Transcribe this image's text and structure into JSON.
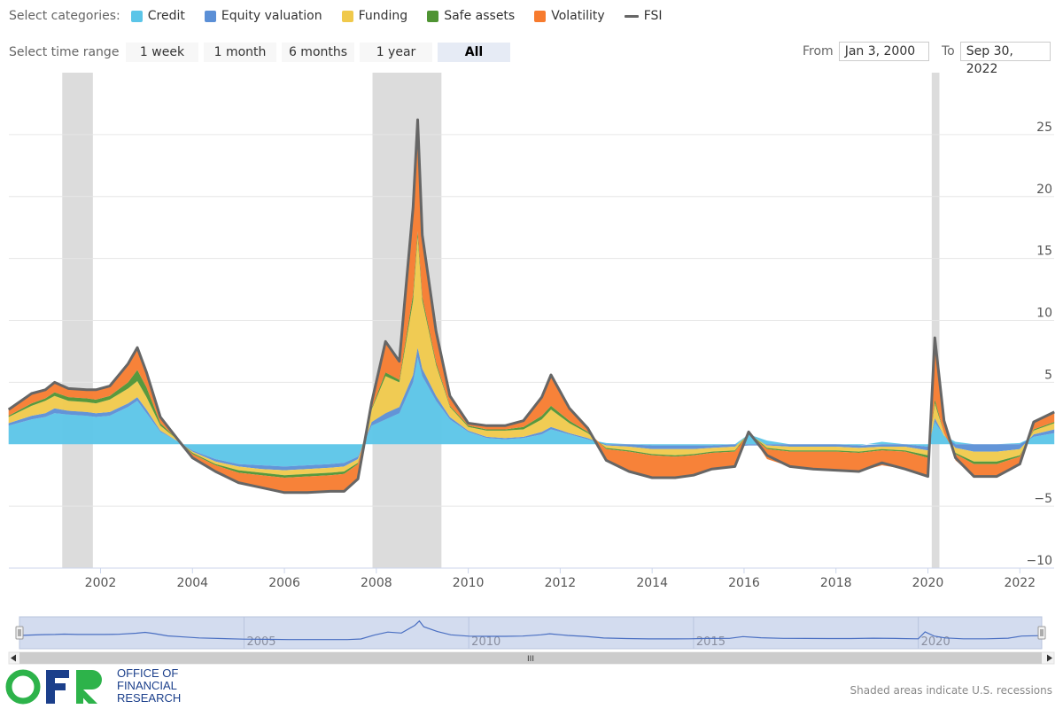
{
  "legend": {
    "title": "Select categories:",
    "items": [
      {
        "label": "Credit",
        "color": "#5bc5e8",
        "type": "area"
      },
      {
        "label": "Equity valuation",
        "color": "#5b8fd6",
        "type": "area"
      },
      {
        "label": "Funding",
        "color": "#f0c94b",
        "type": "area"
      },
      {
        "label": "Safe assets",
        "color": "#4f9433",
        "type": "area"
      },
      {
        "label": "Volatility",
        "color": "#f77b2e",
        "type": "area"
      },
      {
        "label": "FSI",
        "color": "#666666",
        "type": "line"
      }
    ]
  },
  "range_selector": {
    "title": "Select time range",
    "buttons": [
      "1 week",
      "1 month",
      "6 months",
      "1 year",
      "All"
    ],
    "active": "All"
  },
  "date_inputs": {
    "from_label": "From",
    "from_value": "Jan 3, 2000",
    "to_label": "To",
    "to_value": "Sep 30, 2022"
  },
  "navigator": {
    "labels": [
      "2005",
      "2010",
      "2015",
      "2020"
    ],
    "grip": "III"
  },
  "branding": {
    "logo_letters": "OFR",
    "line1": "OFFICE OF",
    "line2": "FINANCIAL",
    "line3": "RESEARCH"
  },
  "footnote": "Shaded areas indicate U.S. recessions",
  "chart_data": {
    "type": "area",
    "stacked": true,
    "x_axis": {
      "type": "date",
      "range": [
        "2000-01-03",
        "2022-09-30"
      ],
      "tick_labels": [
        "2002",
        "2004",
        "2006",
        "2008",
        "2010",
        "2012",
        "2014",
        "2016",
        "2018",
        "2020",
        "2022"
      ]
    },
    "y_axis": {
      "range": [
        -10,
        30
      ],
      "tick_labels": [
        "−10",
        "−5",
        "5",
        "10",
        "15",
        "20",
        "25"
      ],
      "position": "right"
    },
    "grid": true,
    "recessions": [
      [
        "2001-03",
        "2001-11"
      ],
      [
        "2007-12",
        "2009-06"
      ],
      [
        "2020-02",
        "2020-04"
      ]
    ],
    "x": [
      2000.0,
      2000.5,
      2000.8,
      2001.0,
      2001.3,
      2001.7,
      2001.9,
      2002.2,
      2002.6,
      2002.8,
      2003.0,
      2003.3,
      2003.7,
      2004.0,
      2004.5,
      2005.0,
      2005.5,
      2006.0,
      2006.5,
      2007.0,
      2007.3,
      2007.6,
      2007.9,
      2008.2,
      2008.5,
      2008.8,
      2008.9,
      2009.0,
      2009.3,
      2009.6,
      2010.0,
      2010.4,
      2010.8,
      2011.2,
      2011.6,
      2011.8,
      2012.2,
      2012.6,
      2013.0,
      2013.5,
      2014.0,
      2014.5,
      2014.9,
      2015.3,
      2015.8,
      2016.1,
      2016.5,
      2017.0,
      2017.5,
      2018.0,
      2018.5,
      2019.0,
      2019.5,
      2020.0,
      2020.15,
      2020.35,
      2020.6,
      2021.0,
      2021.5,
      2022.0,
      2022.3,
      2022.75
    ],
    "series": [
      {
        "name": "Credit",
        "values": [
          1.5,
          2.0,
          2.2,
          2.5,
          2.4,
          2.3,
          2.2,
          2.3,
          3.0,
          3.5,
          2.5,
          1.0,
          0.2,
          -0.5,
          -1.2,
          -1.6,
          -1.7,
          -1.8,
          -1.7,
          -1.6,
          -1.5,
          -1.0,
          1.5,
          2.0,
          2.5,
          5.0,
          7.0,
          5.5,
          3.5,
          2.0,
          1.0,
          0.5,
          0.4,
          0.5,
          0.8,
          1.2,
          0.8,
          0.4,
          0.1,
          0.0,
          -0.1,
          -0.1,
          -0.1,
          -0.1,
          0.0,
          0.8,
          0.3,
          0.0,
          0.0,
          0.0,
          -0.1,
          0.2,
          0.0,
          -0.2,
          1.8,
          0.7,
          0.2,
          0.0,
          0.0,
          0.1,
          0.6,
          0.9
        ]
      },
      {
        "name": "Equity valuation",
        "values": [
          0.2,
          0.3,
          0.3,
          0.4,
          0.3,
          0.3,
          0.3,
          0.3,
          0.3,
          0.3,
          0.3,
          0.1,
          0.0,
          -0.1,
          -0.2,
          -0.2,
          -0.3,
          -0.3,
          -0.3,
          -0.3,
          -0.3,
          -0.2,
          0.3,
          0.5,
          0.5,
          0.6,
          0.8,
          0.6,
          0.4,
          0.2,
          0.1,
          0.1,
          0.1,
          0.1,
          0.2,
          0.2,
          0.1,
          0.1,
          -0.1,
          -0.2,
          -0.3,
          -0.3,
          -0.3,
          -0.2,
          -0.2,
          -0.1,
          -0.1,
          -0.2,
          -0.2,
          -0.2,
          -0.2,
          -0.2,
          -0.2,
          -0.3,
          0.3,
          0.0,
          -0.3,
          -0.6,
          -0.6,
          -0.4,
          0.2,
          0.3
        ]
      },
      {
        "name": "Funding",
        "values": [
          0.5,
          0.8,
          1.0,
          1.0,
          0.8,
          0.8,
          0.8,
          1.0,
          1.2,
          1.3,
          1.0,
          0.4,
          0.1,
          -0.1,
          -0.2,
          -0.3,
          -0.3,
          -0.4,
          -0.4,
          -0.4,
          -0.4,
          -0.3,
          1.0,
          3.0,
          2.0,
          6.0,
          9.0,
          5.5,
          2.5,
          0.8,
          0.3,
          0.5,
          0.6,
          0.6,
          1.0,
          1.4,
          0.8,
          0.4,
          -0.2,
          -0.3,
          -0.4,
          -0.5,
          -0.4,
          -0.3,
          -0.3,
          0.1,
          -0.2,
          -0.3,
          -0.3,
          -0.3,
          -0.3,
          -0.2,
          -0.3,
          -0.4,
          1.2,
          0.2,
          -0.4,
          -0.8,
          -0.8,
          -0.5,
          0.3,
          0.5
        ]
      },
      {
        "name": "Safe assets",
        "values": [
          0.1,
          0.2,
          0.2,
          0.3,
          0.3,
          0.3,
          0.3,
          0.3,
          0.5,
          0.9,
          0.8,
          0.2,
          0.0,
          -0.1,
          -0.1,
          -0.2,
          -0.2,
          -0.2,
          -0.2,
          -0.2,
          -0.2,
          -0.1,
          0.1,
          0.3,
          0.2,
          0.5,
          0.4,
          0.3,
          0.2,
          0.1,
          0.1,
          0.1,
          0.1,
          0.2,
          0.3,
          0.3,
          0.2,
          0.1,
          -0.1,
          -0.1,
          -0.1,
          -0.1,
          -0.1,
          -0.1,
          -0.1,
          0.0,
          -0.1,
          -0.1,
          -0.1,
          -0.1,
          -0.1,
          -0.1,
          -0.1,
          -0.2,
          0.3,
          0.0,
          -0.1,
          -0.2,
          -0.2,
          -0.1,
          0.1,
          0.1
        ]
      },
      {
        "name": "Volatility",
        "values": [
          0.5,
          0.8,
          0.7,
          0.8,
          0.7,
          0.7,
          0.8,
          0.8,
          1.5,
          1.8,
          1.2,
          0.5,
          0.0,
          -0.3,
          -0.5,
          -0.8,
          -1.0,
          -1.2,
          -1.3,
          -1.3,
          -1.4,
          -1.2,
          0.5,
          2.5,
          1.5,
          7.0,
          9.0,
          5.0,
          2.5,
          0.8,
          0.2,
          0.3,
          0.3,
          0.5,
          1.5,
          2.5,
          1.0,
          0.3,
          -1.0,
          -1.6,
          -1.8,
          -1.7,
          -1.6,
          -1.3,
          -1.2,
          0.2,
          -0.8,
          -1.2,
          -1.4,
          -1.5,
          -1.5,
          -1.2,
          -1.4,
          -1.5,
          5.0,
          1.0,
          -0.5,
          -1.0,
          -1.0,
          -0.7,
          0.6,
          0.8
        ]
      }
    ],
    "fsi": [
      2.8,
      4.1,
      4.4,
      5.0,
      4.5,
      4.4,
      4.4,
      4.7,
      6.5,
      7.8,
      5.8,
      2.2,
      0.3,
      -1.1,
      -2.2,
      -3.1,
      -3.5,
      -3.9,
      -3.9,
      -3.8,
      -3.8,
      -2.8,
      3.4,
      8.3,
      6.7,
      19.1,
      26.2,
      16.9,
      9.1,
      3.9,
      1.7,
      1.5,
      1.5,
      1.9,
      3.8,
      5.6,
      2.9,
      1.3,
      -1.3,
      -2.2,
      -2.7,
      -2.7,
      -2.5,
      -2.0,
      -1.8,
      1.0,
      -0.9,
      -1.8,
      -2.0,
      -2.1,
      -2.2,
      -1.5,
      -2.0,
      -2.6,
      8.6,
      1.9,
      -1.1,
      -2.6,
      -2.6,
      -1.6,
      1.8,
      2.6
    ]
  }
}
